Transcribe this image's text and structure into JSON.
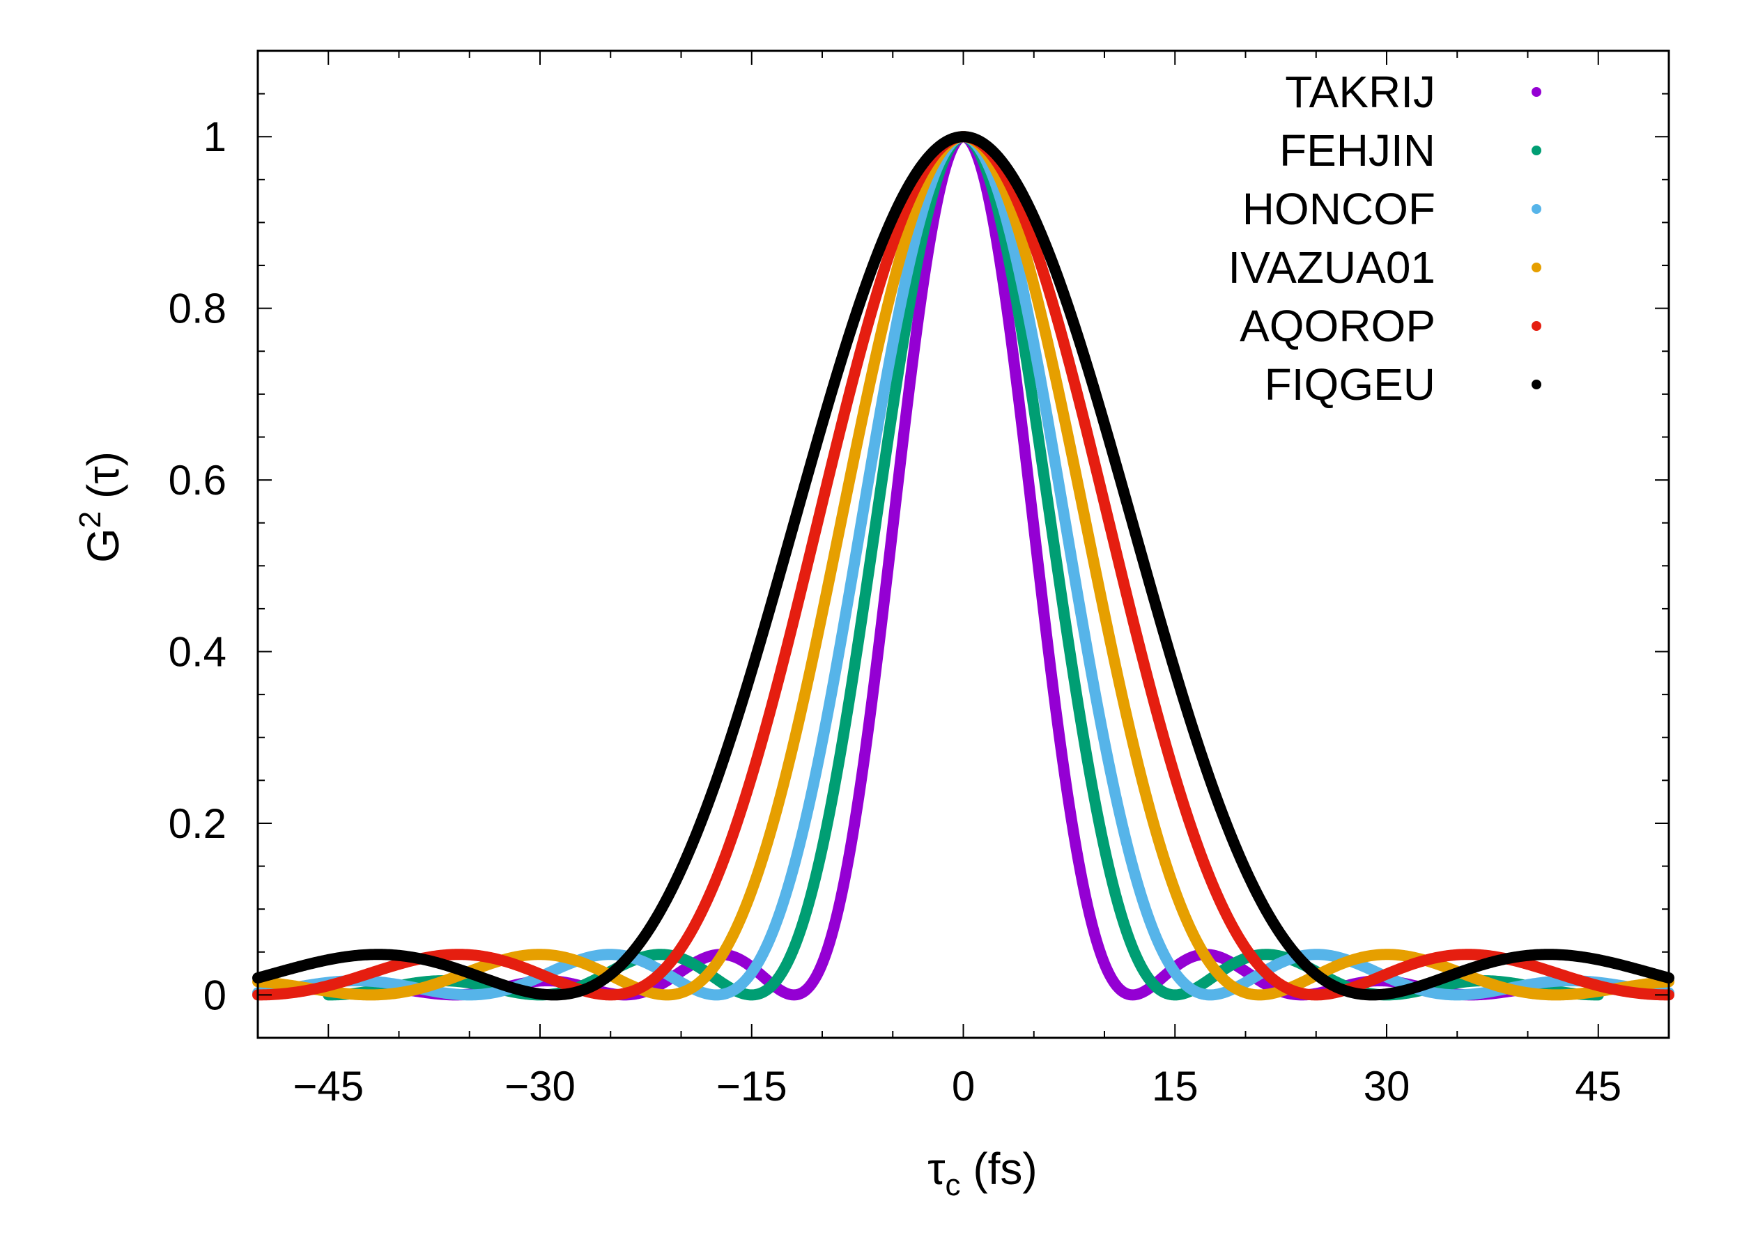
{
  "chart_data": {
    "type": "scatter",
    "title": "",
    "xlabel_symbol": "τ",
    "xlabel_sub": "c",
    "xlabel_unit": "(fs)",
    "ylabel_main": "G",
    "ylabel_sup": "2",
    "ylabel_arg": "(τ)",
    "xlim": [
      -50,
      50
    ],
    "ylim": [
      -0.05,
      1.1
    ],
    "xticks": [
      -45,
      -30,
      -15,
      0,
      15,
      30,
      45
    ],
    "xtick_labels": [
      "−45",
      "−30",
      "−15",
      "0",
      "15",
      "30",
      "45"
    ],
    "yticks": [
      0,
      0.2,
      0.4,
      0.6,
      0.8,
      1
    ],
    "ytick_labels": [
      "0",
      "0.2",
      "0.4",
      "0.6",
      "0.8",
      "1"
    ],
    "grid": false,
    "legend_position": "top-right",
    "model": "sinc^2(tau / first_zero_fs)",
    "series": [
      {
        "name": "TAKRIJ",
        "color": "#9400d3",
        "first_zero_fs": 12.0,
        "x_range": [
          -40,
          40
        ],
        "peak": 1.0
      },
      {
        "name": "FEHJIN",
        "color": "#009e73",
        "first_zero_fs": 15.0,
        "x_range": [
          -45,
          45
        ],
        "peak": 1.0
      },
      {
        "name": "HONCOF",
        "color": "#56b4e9",
        "first_zero_fs": 17.5,
        "x_range": [
          -50,
          50
        ],
        "peak": 1.0
      },
      {
        "name": "IVAZUA01",
        "color": "#e69f00",
        "first_zero_fs": 21.0,
        "x_range": [
          -50,
          50
        ],
        "peak": 1.0
      },
      {
        "name": "AQOROP",
        "color": "#e51e10",
        "first_zero_fs": 25.0,
        "x_range": [
          -50,
          50
        ],
        "peak": 1.0
      },
      {
        "name": "FIQGEU",
        "color": "#000000",
        "first_zero_fs": 29.0,
        "x_range": [
          -50,
          50
        ],
        "peak": 1.0
      }
    ]
  }
}
